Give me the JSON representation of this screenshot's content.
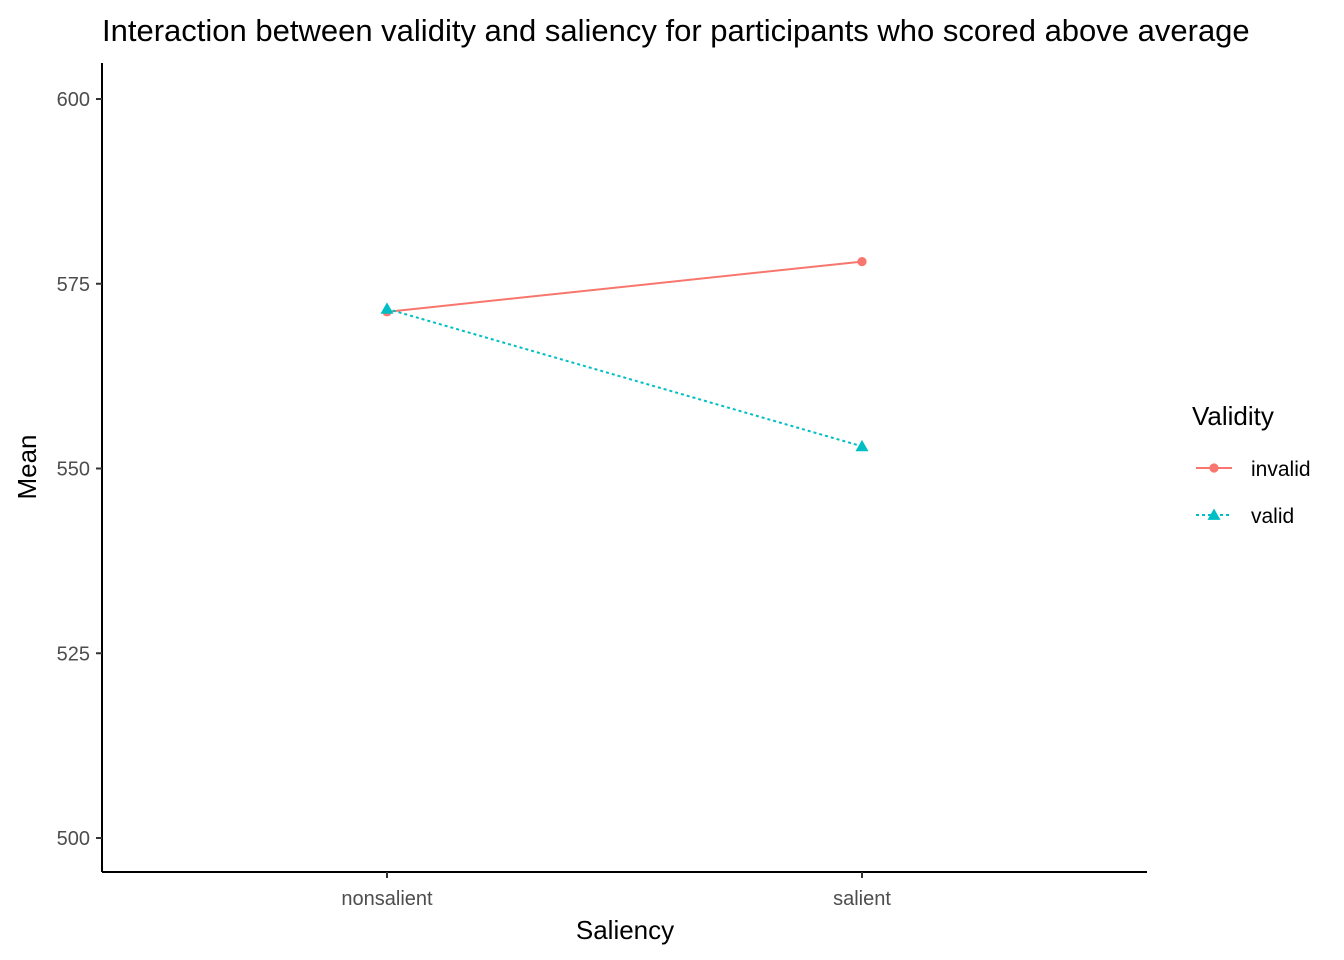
{
  "chart_data": {
    "type": "line",
    "title": "Interaction between validity and saliency for participants who scored above average",
    "xlabel": "Saliency",
    "ylabel": "Mean",
    "categories": [
      "nonsalient",
      "salient"
    ],
    "ylim": [
      495,
      605
    ],
    "yticks": [
      500,
      525,
      550,
      575,
      600
    ],
    "grid": false,
    "legend": {
      "title": "Validity",
      "position": "right"
    },
    "series": [
      {
        "name": "invalid",
        "values": [
          571.2,
          578.0
        ],
        "color": "#F8766D",
        "marker": "circle",
        "linestyle": "solid"
      },
      {
        "name": "valid",
        "values": [
          571.6,
          553.0
        ],
        "color": "#00BFC4",
        "marker": "triangle",
        "linestyle": "dotted"
      }
    ]
  }
}
